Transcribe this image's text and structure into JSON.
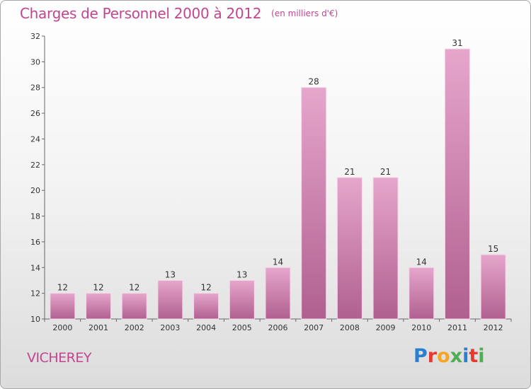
{
  "header": {
    "title": "Charges de Personnel 2000 à 2012",
    "unit": "(en milliers d'€)"
  },
  "footer": {
    "commune": "VICHEREY",
    "logo_text": "Proxiti",
    "logo_colors": [
      "#2a7fd0",
      "#e8392f",
      "#f5a623",
      "#4caf50",
      "#2a7fd0",
      "#e8392f",
      "#4caf50"
    ]
  },
  "colors": {
    "accent": "#c0468f",
    "bar_light": "#e6a6cc",
    "bar_dark": "#b0608f"
  },
  "chart_data": {
    "type": "bar",
    "title": "Charges de Personnel 2000 à 2012",
    "subtitle": "(en milliers d'€)",
    "categories": [
      "2000",
      "2001",
      "2002",
      "2003",
      "2004",
      "2005",
      "2006",
      "2007",
      "2008",
      "2009",
      "2010",
      "2011",
      "2012"
    ],
    "values": [
      12,
      12,
      12,
      13,
      12,
      13,
      14,
      28,
      21,
      21,
      14,
      31,
      15
    ],
    "ylim": [
      10,
      32
    ],
    "yticks": [
      10,
      12,
      14,
      16,
      18,
      20,
      22,
      24,
      26,
      28,
      30,
      32
    ],
    "grid": false,
    "data_labels": true
  }
}
